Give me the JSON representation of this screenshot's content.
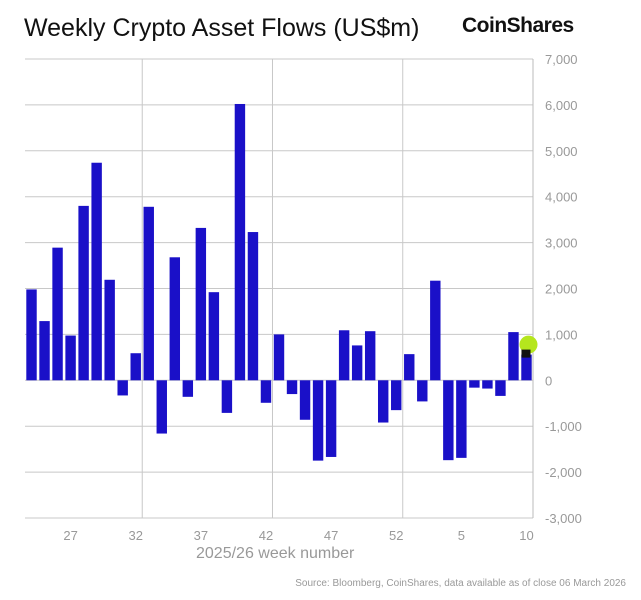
{
  "chart_data": {
    "type": "bar",
    "title": "Weekly Crypto Asset Flows (US$m)",
    "xlabel": "2025/26 week number",
    "ylabel": "",
    "ylim": [
      -3000,
      7000
    ],
    "yticks": [
      7000,
      6000,
      5000,
      4000,
      3000,
      2000,
      1000,
      0,
      -1000,
      -2000,
      -3000
    ],
    "ytick_labels": [
      "7,000",
      "6,000",
      "5,000",
      "4,000",
      "3,000",
      "2,000",
      "1,000",
      "0",
      "-1,000",
      "-2,000",
      "-3,000"
    ],
    "xtick_labels": [
      "27",
      "32",
      "37",
      "42",
      "47",
      "52",
      "5",
      "10"
    ],
    "grid": true,
    "y_axis_position": "right",
    "bar_color": "#1a10c8",
    "highlight_color": "#b5e61d",
    "categories": [
      "24",
      "25",
      "26",
      "27",
      "28",
      "29",
      "30",
      "31",
      "32",
      "33",
      "34",
      "35",
      "36",
      "37",
      "38",
      "39",
      "40",
      "41",
      "42",
      "43",
      "44",
      "45",
      "46",
      "47",
      "48",
      "49",
      "50",
      "51",
      "52",
      "1",
      "2",
      "3",
      "4",
      "5",
      "6",
      "7",
      "8",
      "9",
      "10"
    ],
    "values": [
      1980,
      1290,
      2890,
      975,
      3800,
      4740,
      2190,
      -330,
      590,
      3780,
      -1160,
      2680,
      -360,
      3320,
      1920,
      -710,
      6020,
      3230,
      -490,
      1000,
      -300,
      -860,
      -1750,
      -1670,
      1090,
      760,
      1070,
      -920,
      -650,
      570,
      -460,
      2170,
      -1740,
      -1690,
      -160,
      -180,
      -340,
      1050,
      560
    ]
  },
  "logo": "CoinShares",
  "source": "Source: Bloomberg, CoinShares, data available as of close 06 March 2026"
}
